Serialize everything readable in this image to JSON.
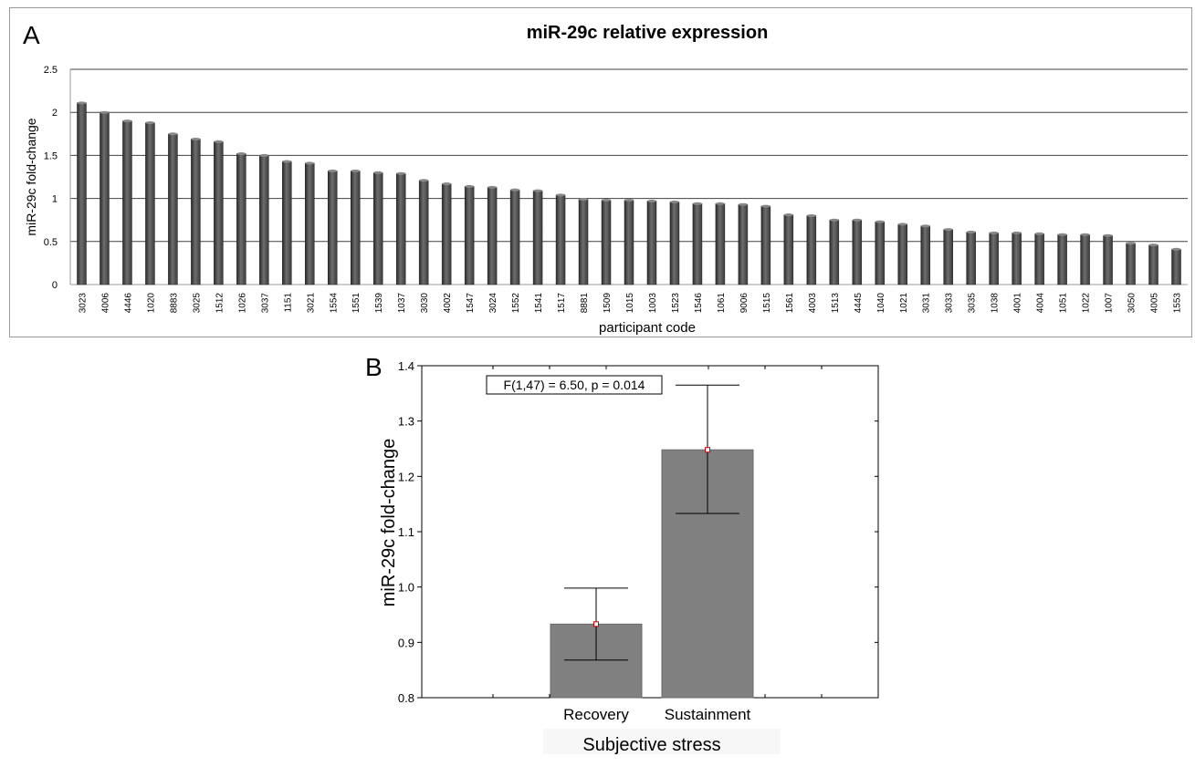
{
  "chart_data": [
    {
      "panel_label": "A",
      "type": "bar",
      "title": "miR-29c relative expression",
      "xlabel": "participant code",
      "ylabel": "miR-29c fold-change",
      "ylim": [
        0,
        2.5
      ],
      "yticks": [
        "0",
        "0.5",
        "1",
        "1.5",
        "2",
        "2.5"
      ],
      "grid": true,
      "categories": [
        "3023",
        "4006",
        "4446",
        "1020",
        "8883",
        "3025",
        "1512",
        "1026",
        "3037",
        "1151",
        "3021",
        "1554",
        "1551",
        "1539",
        "1037",
        "3030",
        "4002",
        "1547",
        "3024",
        "1552",
        "1541",
        "1517",
        "8881",
        "1509",
        "1015",
        "1003",
        "1523",
        "1546",
        "1061",
        "9006",
        "1515",
        "1561",
        "4003",
        "1513",
        "4445",
        "1040",
        "1021",
        "3031",
        "3033",
        "3035",
        "1038",
        "4001",
        "4004",
        "1051",
        "1022",
        "1007",
        "3050",
        "4005",
        "1553"
      ],
      "values": [
        2.11,
        2.0,
        1.9,
        1.88,
        1.75,
        1.69,
        1.66,
        1.52,
        1.5,
        1.43,
        1.41,
        1.32,
        1.32,
        1.3,
        1.29,
        1.21,
        1.17,
        1.14,
        1.13,
        1.1,
        1.09,
        1.04,
        0.99,
        0.98,
        0.98,
        0.97,
        0.96,
        0.94,
        0.94,
        0.93,
        0.91,
        0.81,
        0.8,
        0.75,
        0.75,
        0.73,
        0.7,
        0.68,
        0.64,
        0.61,
        0.6,
        0.6,
        0.59,
        0.58,
        0.58,
        0.57,
        0.48,
        0.46,
        0.41
      ]
    },
    {
      "panel_label": "B",
      "type": "bar",
      "xlabel": "Subjective stress",
      "ylabel": "miR-29c fold-change",
      "ylim": [
        0.8,
        1.4
      ],
      "yticks": [
        "0.8",
        "0.9",
        "1.0",
        "1.1",
        "1.2",
        "1.3",
        "1.4"
      ],
      "categories": [
        "Recovery",
        "Sustainment"
      ],
      "values": [
        0.933,
        1.248
      ],
      "error_low": [
        0.868,
        1.133
      ],
      "error_high": [
        0.998,
        1.365
      ],
      "annotation": "F(1,47) = 6.50, p = 0.014"
    }
  ],
  "colors": {
    "bar_dark": "#4a4a4a",
    "bar_gray": "#808080",
    "grid": "#404040"
  }
}
